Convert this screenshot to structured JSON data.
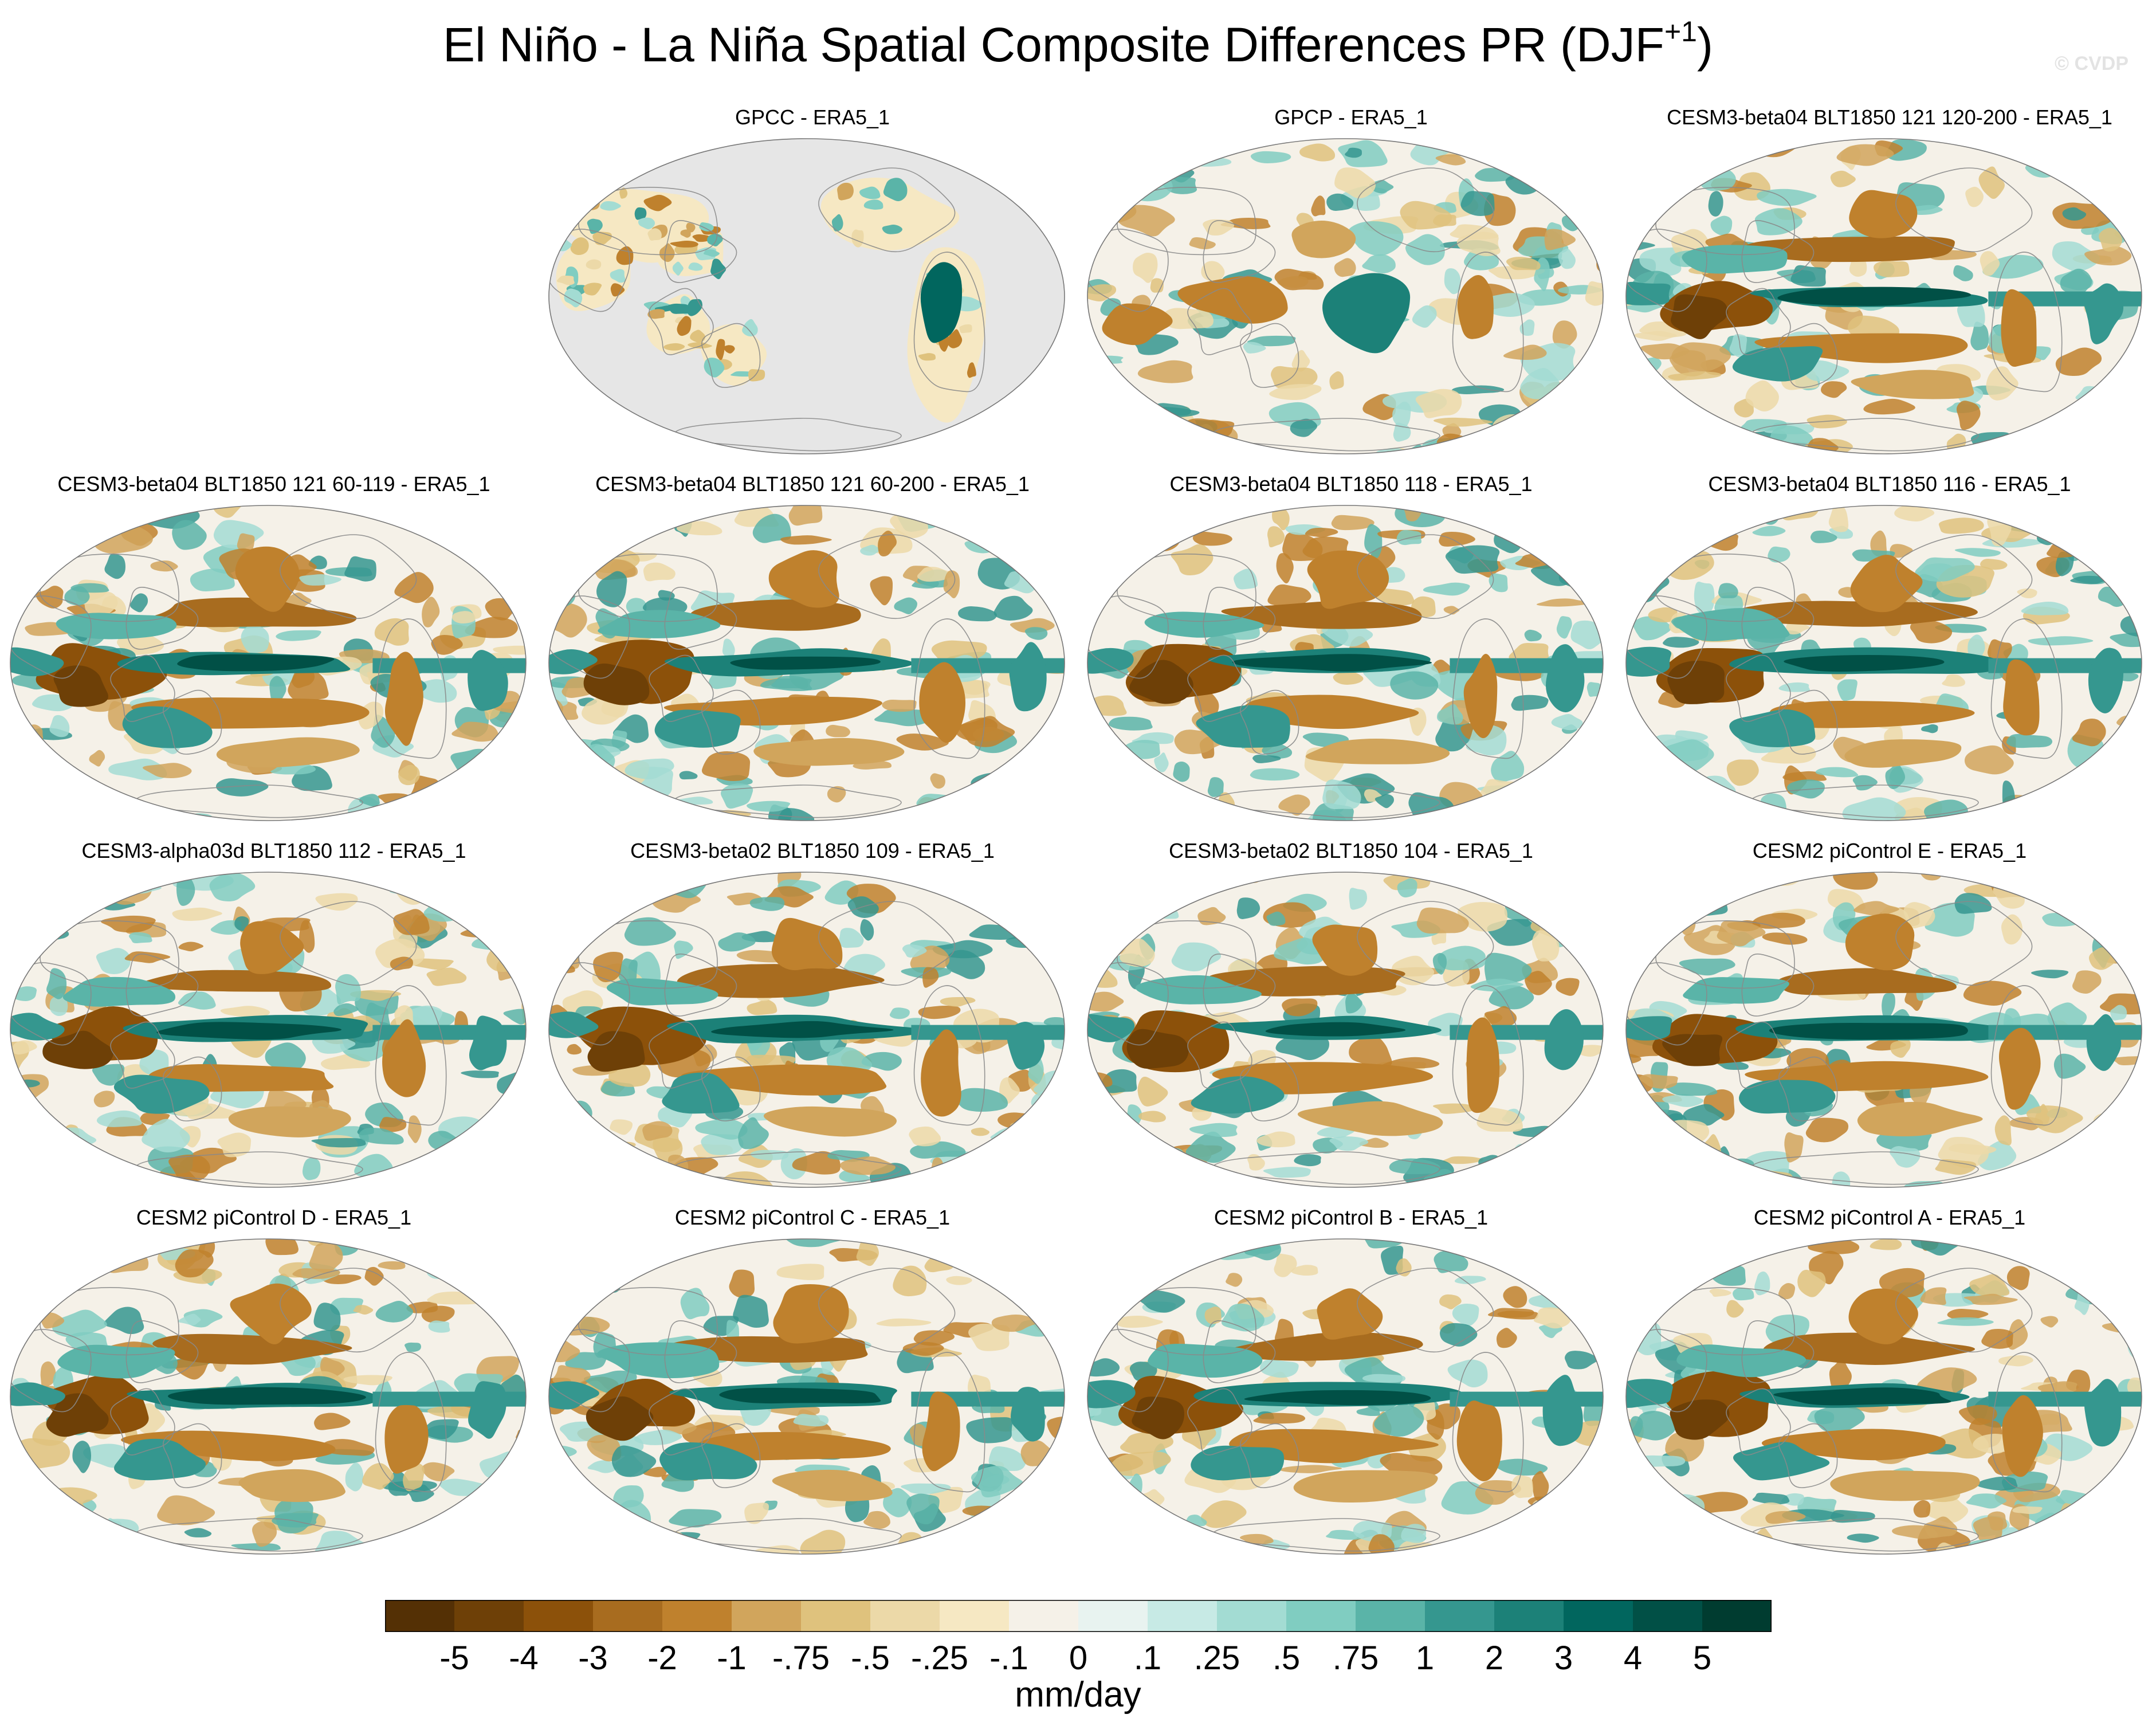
{
  "figure": {
    "title_main": "El Niño - La Niña Spatial Composite Differences PR (DJF",
    "title_sup": "+1",
    "title_close": ")",
    "watermark": "© CVDP"
  },
  "panels": [
    {
      "title": "GPCC - ERA5_1",
      "type": "land"
    },
    {
      "title": "GPCP - ERA5_1",
      "type": "obs"
    },
    {
      "title": "CESM3-beta04 BLT1850 121 120-200 - ERA5_1",
      "type": "model"
    },
    {
      "title": "CESM3-beta04 BLT1850 121 60-119 - ERA5_1",
      "type": "model"
    },
    {
      "title": "CESM3-beta04 BLT1850 121 60-200 - ERA5_1",
      "type": "model"
    },
    {
      "title": "CESM3-beta04 BLT1850 118 - ERA5_1",
      "type": "model"
    },
    {
      "title": "CESM3-beta04 BLT1850 116 - ERA5_1",
      "type": "model"
    },
    {
      "title": "CESM3-alpha03d BLT1850 112 - ERA5_1",
      "type": "model"
    },
    {
      "title": "CESM3-beta02 BLT1850 109 - ERA5_1",
      "type": "model"
    },
    {
      "title": "CESM3-beta02 BLT1850 104 - ERA5_1",
      "type": "model"
    },
    {
      "title": "CESM2 piControl E - ERA5_1",
      "type": "model"
    },
    {
      "title": "CESM2 piControl D - ERA5_1",
      "type": "model"
    },
    {
      "title": "CESM2 piControl C - ERA5_1",
      "type": "model"
    },
    {
      "title": "CESM2 piControl B - ERA5_1",
      "type": "model"
    },
    {
      "title": "CESM2 piControl A - ERA5_1",
      "type": "model"
    }
  ],
  "colorbar": {
    "units": "mm/day",
    "tick_labels": [
      "-5",
      "-4",
      "-3",
      "-2",
      "-1",
      "-.75",
      "-.5",
      "-.25",
      "-.1",
      "0",
      ".1",
      ".25",
      ".5",
      ".75",
      "1",
      "2",
      "3",
      "4",
      "5"
    ],
    "colors": [
      "#543005",
      "#6e4007",
      "#8c510a",
      "#a86c1f",
      "#bf812d",
      "#d1a55c",
      "#dfc27d",
      "#ecd9a8",
      "#f6e8c3",
      "#f5f1e8",
      "#e8f3f0",
      "#c7eae5",
      "#a3dcd3",
      "#80cdc1",
      "#5ab4a8",
      "#35978f",
      "#1c8178",
      "#01665e",
      "#015046",
      "#003c30"
    ]
  },
  "map_colors": {
    "land_mask": "#e6e6e6",
    "coast": "#8a8a8a"
  }
}
